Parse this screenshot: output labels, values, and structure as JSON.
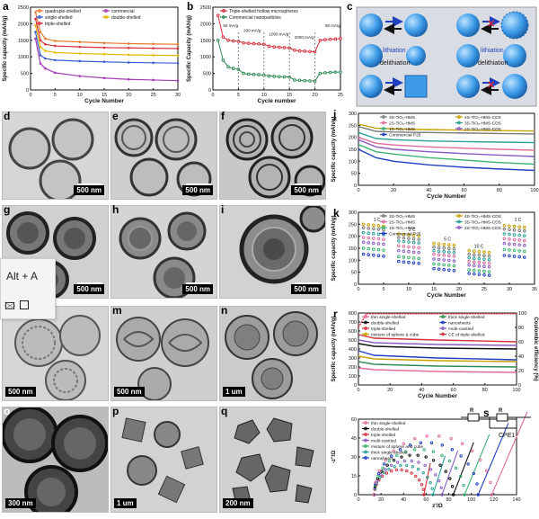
{
  "labels": {
    "a": "a",
    "b": "b",
    "c": "c",
    "d": "d",
    "e": "e",
    "f": "f",
    "g": "g",
    "h": "h",
    "i": "i",
    "j": "j",
    "k": "k",
    "l": "l",
    "m": "m",
    "n": "n",
    "o": "o",
    "p": "p",
    "q": "q",
    "r": "r",
    "s": "s"
  },
  "overlay": {
    "shortcut": "Alt + A"
  },
  "scalebars": {
    "d": "500 nm",
    "e": "500 nm",
    "f": "500 nm",
    "g": "500 nm",
    "h": "500 nm",
    "i": "500 nm",
    "l": "500 nm",
    "m": "500 nm",
    "n": "1 um",
    "o": "300 nm",
    "p": "1 um",
    "q": "200 nm"
  },
  "panel_c": {
    "lithiation": "lithiation",
    "delithiation": "delithiation"
  },
  "chart_data": [
    {
      "id": "a",
      "type": "line",
      "xlabel": "Cycle Number",
      "ylabel": "Specific capacity (mAh/g)",
      "xlim": [
        0,
        30
      ],
      "ylim": [
        0,
        2500
      ],
      "xticks": [
        0,
        5,
        10,
        15,
        20,
        25,
        30
      ],
      "yticks": [
        0,
        500,
        1000,
        1500,
        2000,
        2500
      ],
      "legend_items": [
        "quadruple-shelled",
        "commercial",
        "single-shelled",
        "double-shelled",
        "triple-shelled"
      ],
      "series": [
        {
          "name": "quadruple-shelled",
          "color": "#e87a2b",
          "x": [
            1,
            2,
            3,
            5,
            10,
            15,
            20,
            25,
            30
          ],
          "y": [
            2350,
            1750,
            1550,
            1480,
            1450,
            1420,
            1400,
            1390,
            1380
          ]
        },
        {
          "name": "triple-shelled",
          "color": "#d6303c",
          "x": [
            1,
            2,
            3,
            5,
            10,
            15,
            20,
            25,
            30
          ],
          "y": [
            2150,
            1500,
            1380,
            1330,
            1300,
            1280,
            1270,
            1260,
            1250
          ]
        },
        {
          "name": "double-shelled",
          "color": "#e6b700",
          "x": [
            1,
            2,
            3,
            5,
            10,
            15,
            20,
            25,
            30
          ],
          "y": [
            1950,
            1300,
            1180,
            1130,
            1100,
            1080,
            1060,
            1050,
            1040
          ]
        },
        {
          "name": "single-shelled",
          "color": "#3a5fcd",
          "x": [
            1,
            2,
            3,
            5,
            10,
            15,
            20,
            25,
            30
          ],
          "y": [
            1750,
            1050,
            950,
            900,
            870,
            850,
            830,
            820,
            810
          ]
        },
        {
          "name": "commercial",
          "color": "#a23bb5",
          "x": [
            1,
            2,
            3,
            5,
            10,
            15,
            20,
            25,
            30
          ],
          "y": [
            1550,
            800,
            650,
            520,
            420,
            360,
            320,
            300,
            280
          ]
        }
      ]
    },
    {
      "id": "b",
      "type": "line",
      "xlabel": "Cycle number",
      "ylabel": "Specific Capacity (mAh/g)",
      "xlim": [
        0,
        25
      ],
      "ylim": [
        0,
        2500
      ],
      "xticks": [
        0,
        5,
        10,
        15,
        20,
        25
      ],
      "yticks": [
        0,
        500,
        1000,
        1500,
        2000,
        2500
      ],
      "legend_items": [
        "Triple-shelled hollow microspheres",
        "Commercial nanoparticles"
      ],
      "annotations": [
        "50 mA/g",
        "200 mA/g",
        "1000 mA/g",
        "2000 mA/g",
        "50 mA/g"
      ],
      "series": [
        {
          "name": "Triple-shelled hollow microspheres",
          "color": "#d6303c",
          "x": [
            1,
            2,
            3,
            4,
            5,
            6,
            7,
            8,
            9,
            10,
            11,
            12,
            13,
            14,
            15,
            16,
            17,
            18,
            19,
            20,
            21,
            22,
            23,
            24,
            25
          ],
          "y": [
            2250,
            1600,
            1500,
            1480,
            1470,
            1420,
            1410,
            1400,
            1390,
            1380,
            1320,
            1300,
            1290,
            1280,
            1270,
            1200,
            1180,
            1170,
            1160,
            1150,
            1500,
            1520,
            1530,
            1540,
            1550
          ]
        },
        {
          "name": "Commercial nanoparticles",
          "color": "#2e8b57",
          "x": [
            1,
            2,
            3,
            4,
            5,
            6,
            7,
            8,
            9,
            10,
            11,
            12,
            13,
            14,
            15,
            16,
            17,
            18,
            19,
            20,
            21,
            22,
            23,
            24,
            25
          ],
          "y": [
            1500,
            900,
            700,
            650,
            620,
            500,
            480,
            470,
            460,
            450,
            420,
            410,
            400,
            395,
            390,
            300,
            290,
            280,
            275,
            270,
            500,
            520,
            530,
            540,
            540
          ]
        }
      ]
    },
    {
      "id": "j",
      "type": "line",
      "xlabel": "Cycle Number",
      "ylabel": "Specific capacity (mAh/g)",
      "xlim": [
        0,
        100
      ],
      "ylim": [
        0,
        300
      ],
      "xticks": [
        0,
        20,
        40,
        60,
        80,
        100
      ],
      "yticks": [
        0,
        50,
        100,
        150,
        200,
        250,
        300
      ],
      "legend_items": [
        "3S-TiO₂-HMS",
        "4S-TiO₂-HMS-CDS",
        "2S-TiO₂-HMS",
        "3S-TiO₂-HMS-CDS",
        "1S-TiO₂-HMS",
        "2S-TiO₂-HMS-CDS",
        "Commercial P25"
      ],
      "series": [
        {
          "name": "4S-TiO₂-HMS-CDS",
          "color": "#c9a100",
          "x": [
            0,
            10,
            20,
            40,
            60,
            80,
            100
          ],
          "y": [
            255,
            238,
            235,
            232,
            230,
            228,
            226
          ]
        },
        {
          "name": "3S-TiO₂-HMS",
          "color": "#7a7a7a",
          "x": [
            0,
            10,
            20,
            40,
            60,
            80,
            100
          ],
          "y": [
            245,
            225,
            222,
            220,
            218,
            216,
            214
          ]
        },
        {
          "name": "3S-TiO₂-HMS-CDS",
          "color": "#2aa198",
          "x": [
            0,
            10,
            20,
            40,
            60,
            80,
            100
          ],
          "y": [
            220,
            195,
            190,
            185,
            182,
            180,
            178
          ]
        },
        {
          "name": "2S-TiO₂-HMS",
          "color": "#e06c9f",
          "x": [
            0,
            10,
            20,
            40,
            60,
            80,
            100
          ],
          "y": [
            200,
            175,
            168,
            160,
            155,
            150,
            146
          ]
        },
        {
          "name": "2S-TiO₂-HMS-CDS",
          "color": "#8a5cc2",
          "x": [
            0,
            10,
            20,
            40,
            60,
            80,
            100
          ],
          "y": [
            190,
            160,
            150,
            140,
            132,
            126,
            120
          ]
        },
        {
          "name": "1S-TiO₂-HMS",
          "color": "#3cb371",
          "x": [
            0,
            10,
            20,
            40,
            60,
            80,
            100
          ],
          "y": [
            170,
            140,
            130,
            115,
            105,
            95,
            88
          ]
        },
        {
          "name": "Commercial P25",
          "color": "#1f3fbf",
          "x": [
            0,
            10,
            20,
            40,
            60,
            80,
            100
          ],
          "y": [
            150,
            115,
            100,
            85,
            75,
            68,
            62
          ]
        }
      ]
    },
    {
      "id": "k",
      "type": "scatter",
      "xlabel": "Cycle Number",
      "ylabel": "Specific capacity (mAh/g)",
      "xlim": [
        0,
        35
      ],
      "ylim": [
        0,
        300
      ],
      "xticks": [
        0,
        5,
        10,
        15,
        20,
        25,
        30,
        35
      ],
      "yticks": [
        0,
        50,
        100,
        150,
        200,
        250,
        300
      ],
      "legend_items": [
        "3S-TiO₂-HMS",
        "4S-TiO₂-HMS-CDS",
        "2S-TiO₂-HMS",
        "3S-TiO₂-HMS-CDS",
        "1S-TiO₂-HMS",
        "2S-TiO₂-HMS-CDS",
        "Commercial P25"
      ],
      "annotations": [
        "1 C",
        "2 C",
        "5 C",
        "10 C",
        "1 C"
      ],
      "series": [
        {
          "name": "4S-TiO₂-HMS-CDS",
          "color": "#c9a100",
          "levels": [
            250,
            210,
            170,
            140,
            245
          ]
        },
        {
          "name": "3S-TiO₂-HMS",
          "color": "#7a7a7a",
          "levels": [
            235,
            195,
            155,
            125,
            230
          ]
        },
        {
          "name": "3S-TiO₂-HMS-CDS",
          "color": "#2aa198",
          "levels": [
            215,
            180,
            140,
            110,
            210
          ]
        },
        {
          "name": "2S-TiO₂-HMS",
          "color": "#e06c9f",
          "levels": [
            195,
            160,
            125,
            95,
            190
          ]
        },
        {
          "name": "2S-TiO₂-HMS-CDS",
          "color": "#8a5cc2",
          "levels": [
            175,
            140,
            105,
            80,
            170
          ]
        },
        {
          "name": "1S-TiO₂-HMS",
          "color": "#3cb371",
          "levels": [
            150,
            115,
            85,
            60,
            145
          ]
        },
        {
          "name": "Commercial P25",
          "color": "#1f3fbf",
          "levels": [
            125,
            95,
            65,
            45,
            120
          ]
        }
      ]
    },
    {
      "id": "r",
      "type": "line",
      "xlabel": "Cycle Number",
      "ylabel": "Specific capacity (mAh/g)",
      "y2label": "Coulombic efficiency (%)",
      "xlim": [
        0,
        100
      ],
      "ylim": [
        0,
        800
      ],
      "y2lim": [
        0,
        100
      ],
      "xticks": [
        0,
        20,
        40,
        60,
        80,
        100
      ],
      "yticks": [
        0,
        100,
        200,
        300,
        400,
        500,
        600,
        700,
        800
      ],
      "y2ticks": [
        0,
        20,
        40,
        60,
        80,
        100
      ],
      "legend_items": [
        "thin single-shelled",
        "thick single-shelled",
        "double-shelled",
        "nanosheets",
        "triple-shelled",
        "multi-cavitied",
        "mixture of sphere & cube",
        "CE of triple-shelled"
      ],
      "series": [
        {
          "name": "CE of triple-shelled",
          "color": "#d6303c",
          "axis": "y2",
          "x": [
            0,
            5,
            100
          ],
          "y": [
            80,
            99,
            99
          ]
        },
        {
          "name": "triple-shelled",
          "color": "#d6303c",
          "x": [
            0,
            10,
            50,
            100
          ],
          "y": [
            560,
            520,
            500,
            480
          ]
        },
        {
          "name": "multi-cavitied",
          "color": "#8a5cc2",
          "x": [
            0,
            10,
            50,
            100
          ],
          "y": [
            500,
            470,
            450,
            440
          ]
        },
        {
          "name": "double-shelled",
          "color": "#111111",
          "x": [
            0,
            10,
            50,
            100
          ],
          "y": [
            460,
            430,
            410,
            400
          ]
        },
        {
          "name": "nanosheets",
          "color": "#1f3fbf",
          "x": [
            0,
            10,
            50,
            100
          ],
          "y": [
            380,
            330,
            300,
            280
          ]
        },
        {
          "name": "mixture of sphere & cube",
          "color": "#c9a100",
          "x": [
            0,
            10,
            50,
            100
          ],
          "y": [
            320,
            290,
            270,
            260
          ]
        },
        {
          "name": "thick single-shelled",
          "color": "#2e8b57",
          "x": [
            0,
            10,
            50,
            100
          ],
          "y": [
            260,
            230,
            210,
            200
          ]
        },
        {
          "name": "thin single-shelled",
          "color": "#e06c9f",
          "x": [
            0,
            10,
            50,
            100
          ],
          "y": [
            190,
            170,
            150,
            140
          ]
        }
      ]
    },
    {
      "id": "s",
      "type": "scatter",
      "xlabel": "z'/Ω",
      "ylabel": "-z''/Ω",
      "xlim": [
        0,
        140
      ],
      "ylim": [
        0,
        60
      ],
      "xticks": [
        0,
        20,
        40,
        60,
        80,
        100,
        120,
        140
      ],
      "yticks": [
        0,
        15,
        30,
        45,
        60
      ],
      "legend_items": [
        "thin single-shelled",
        "double-shelled",
        "triple-shelled",
        "multi-cavitied",
        "mixture of sphere and cube",
        "thick single-shelled",
        "nanosheets"
      ],
      "annotations": [
        "R",
        "R",
        "CPE1"
      ],
      "series": [
        {
          "name": "triple-shelled",
          "color": "#d6303c",
          "r": 22,
          "tail": [
            46,
            14
          ]
        },
        {
          "name": "thick single-shelled",
          "color": "#2aa198",
          "r": 26,
          "tail": [
            56,
            18
          ]
        },
        {
          "name": "multi-cavitied",
          "color": "#8a5cc2",
          "r": 30,
          "tail": [
            64,
            20
          ]
        },
        {
          "name": "double-shelled",
          "color": "#111111",
          "r": 35,
          "tail": [
            74,
            24
          ]
        },
        {
          "name": "mixture of sphere and cube",
          "color": "#3cb371",
          "r": 40,
          "tail": [
            84,
            28
          ]
        },
        {
          "name": "nanosheets",
          "color": "#1f3fbf",
          "r": 46,
          "tail": [
            96,
            34
          ]
        },
        {
          "name": "thin single-shelled",
          "color": "#e06c9f",
          "r": 52,
          "tail": [
            108,
            40
          ]
        }
      ]
    }
  ]
}
